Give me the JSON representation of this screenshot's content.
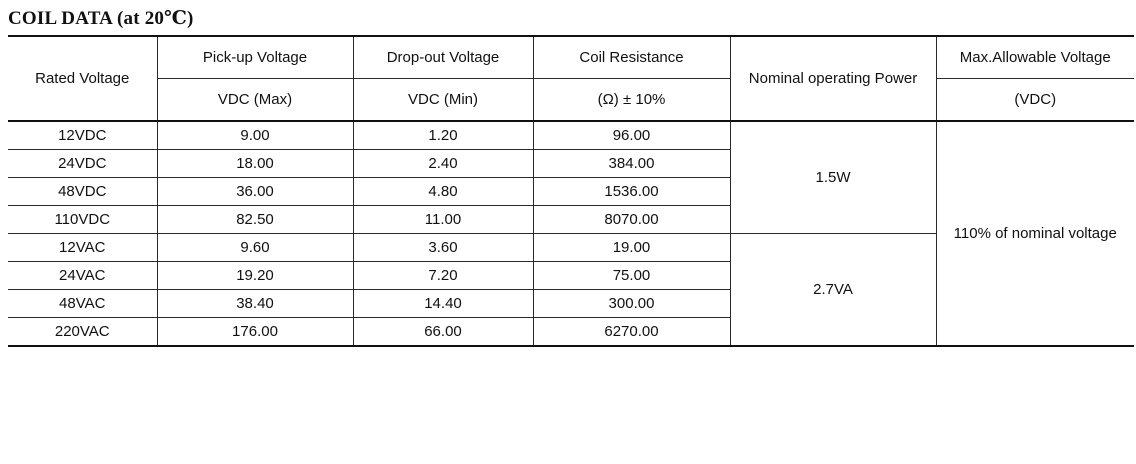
{
  "title": "COIL DATA (at 20℃)",
  "headers": {
    "rated_voltage": "Rated Voltage",
    "pickup_line1": "Pick-up Voltage",
    "pickup_line2": "VDC (Max)",
    "dropout_line1": "Drop-out Voltage",
    "dropout_line2": "VDC (Min)",
    "resistance_line1": "Coil Resistance",
    "resistance_line2": "(Ω) ± 10%",
    "nominal_power": "Nominal operating Power",
    "max_voltage_line1": "Max.Allowable Voltage",
    "max_voltage_line2": "(VDC)"
  },
  "rows": [
    {
      "rated": "12VDC",
      "pickup": "9.00",
      "dropout": "1.20",
      "resistance": "96.00"
    },
    {
      "rated": "24VDC",
      "pickup": "18.00",
      "dropout": "2.40",
      "resistance": "384.00"
    },
    {
      "rated": "48VDC",
      "pickup": "36.00",
      "dropout": "4.80",
      "resistance": "1536.00"
    },
    {
      "rated": "110VDC",
      "pickup": "82.50",
      "dropout": "11.00",
      "resistance": "8070.00"
    },
    {
      "rated": "12VAC",
      "pickup": "9.60",
      "dropout": "3.60",
      "resistance": "19.00"
    },
    {
      "rated": "24VAC",
      "pickup": "19.20",
      "dropout": "7.20",
      "resistance": "75.00"
    },
    {
      "rated": "48VAC",
      "pickup": "38.40",
      "dropout": "14.40",
      "resistance": "300.00"
    },
    {
      "rated": "220VAC",
      "pickup": "176.00",
      "dropout": "66.00",
      "resistance": "6270.00"
    }
  ],
  "power_dc": "1.5W",
  "power_ac": "2.7VA",
  "max_voltage_value": "110% of nominal voltage"
}
